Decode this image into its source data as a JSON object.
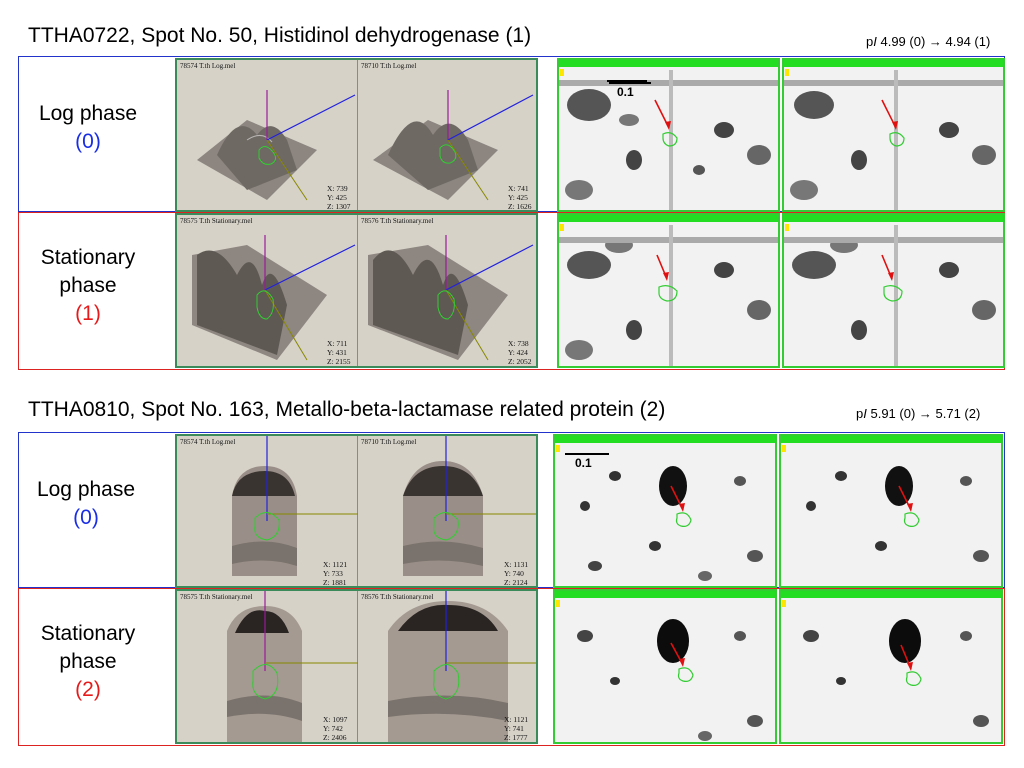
{
  "panels": [
    {
      "title": "TTHA0722, Spot No. 50, Histidinol dehydrogenase (1)",
      "pi_prefix": "p",
      "pi_italic": "I",
      "pi_text": " 4.99 (0) → 4.94 (1)",
      "scale_label": "0.1",
      "log": {
        "label": "Log phase",
        "number": "(0)",
        "files": [
          "78574 T.th Log.mel",
          "78710 T.th Log.mel"
        ],
        "coords": [
          [
            "X: 739",
            "Y: 425",
            "Z: 1307"
          ],
          [
            "X: 741",
            "Y: 425",
            "Z: 1626"
          ]
        ]
      },
      "stationary": {
        "label_line1": "Stationary",
        "label_line2": "phase",
        "number": "(1)",
        "files": [
          "78575 T.th Stationary.mel",
          "78576 T.th Stationary.mel"
        ],
        "coords": [
          [
            "X: 711",
            "Y: 431",
            "Z: 2155"
          ],
          [
            "X: 738",
            "Y: 424",
            "Z: 2052"
          ]
        ]
      }
    },
    {
      "title": "TTHA0810, Spot No. 163, Metallo-beta-lactamase related protein (2)",
      "pi_prefix": "p",
      "pi_italic": "I",
      "pi_text": " 5.91 (0) → 5.71 (2)",
      "scale_label": "0.1",
      "log": {
        "label": "Log phase",
        "number": "(0)",
        "files": [
          "78574 T.th Log.mel",
          "78710 T.th Log.mel"
        ],
        "coords": [
          [
            "X: 1121",
            "Y: 733",
            "Z: 1881"
          ],
          [
            "X: 1131",
            "Y: 740",
            "Z: 2124"
          ]
        ]
      },
      "stationary": {
        "label_line1": "Stationary",
        "label_line2": "phase",
        "number": "(2)",
        "files": [
          "78575 T.th Stationary.mel",
          "78576 T.th Stationary.mel"
        ],
        "coords": [
          [
            "X: 1097",
            "Y: 742",
            "Z: 2406"
          ],
          [
            "X: 1121",
            "Y: 741",
            "Z: 1777"
          ]
        ]
      }
    }
  ],
  "colors": {
    "log_border": "#2233cc",
    "stationary_border": "#dd2222",
    "spot_outline": "#33cc33",
    "arrow": "#e01010"
  }
}
